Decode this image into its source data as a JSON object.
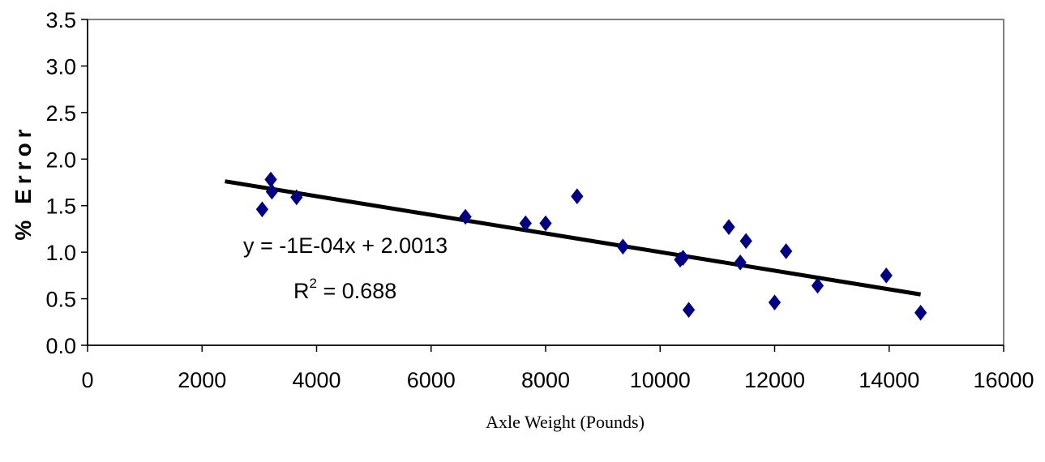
{
  "chart_data": {
    "type": "scatter",
    "xlabel": "Axle Weight (Pounds)",
    "ylabel": "% Error",
    "xlim": [
      0,
      16000
    ],
    "ylim": [
      0,
      3.5
    ],
    "xticks": [
      0,
      2000,
      4000,
      6000,
      8000,
      10000,
      12000,
      14000,
      16000
    ],
    "xtick_labels": [
      "0",
      "2000",
      "4000",
      "6000",
      "8000",
      "10000",
      "12000",
      "14000",
      "16000"
    ],
    "yticks": [
      0,
      0.5,
      1.0,
      1.5,
      2.0,
      2.5,
      3.0,
      3.5
    ],
    "ytick_labels": [
      "0.0",
      "0.5",
      "1.0",
      "1.5",
      "2.0",
      "2.5",
      "3.0",
      "3.5"
    ],
    "grid": false,
    "legend": "none",
    "series": [
      {
        "marker": "diamond",
        "color": "#000080",
        "points": [
          {
            "x": 3050,
            "y": 1.46
          },
          {
            "x": 3200,
            "y": 1.78
          },
          {
            "x": 3220,
            "y": 1.65
          },
          {
            "x": 3650,
            "y": 1.59
          },
          {
            "x": 6600,
            "y": 1.38
          },
          {
            "x": 7650,
            "y": 1.31
          },
          {
            "x": 8000,
            "y": 1.31
          },
          {
            "x": 8550,
            "y": 1.6
          },
          {
            "x": 9350,
            "y": 1.06
          },
          {
            "x": 10350,
            "y": 0.92
          },
          {
            "x": 10400,
            "y": 0.94
          },
          {
            "x": 10500,
            "y": 0.38
          },
          {
            "x": 11200,
            "y": 1.27
          },
          {
            "x": 11400,
            "y": 0.89
          },
          {
            "x": 11500,
            "y": 1.12
          },
          {
            "x": 12000,
            "y": 0.46
          },
          {
            "x": 12200,
            "y": 1.01
          },
          {
            "x": 12750,
            "y": 0.64
          },
          {
            "x": 13950,
            "y": 0.75
          },
          {
            "x": 14550,
            "y": 0.35
          }
        ]
      }
    ],
    "trendline": {
      "color": "#000000",
      "x": [
        2400,
        14550
      ],
      "slope": -0.0001,
      "intercept": 2.0013
    },
    "annotations": {
      "equation": "y = -1E-04x + 2.0013",
      "r2_prefix": "R",
      "r2_sup": "2",
      "r2_value": " = 0.688"
    }
  }
}
